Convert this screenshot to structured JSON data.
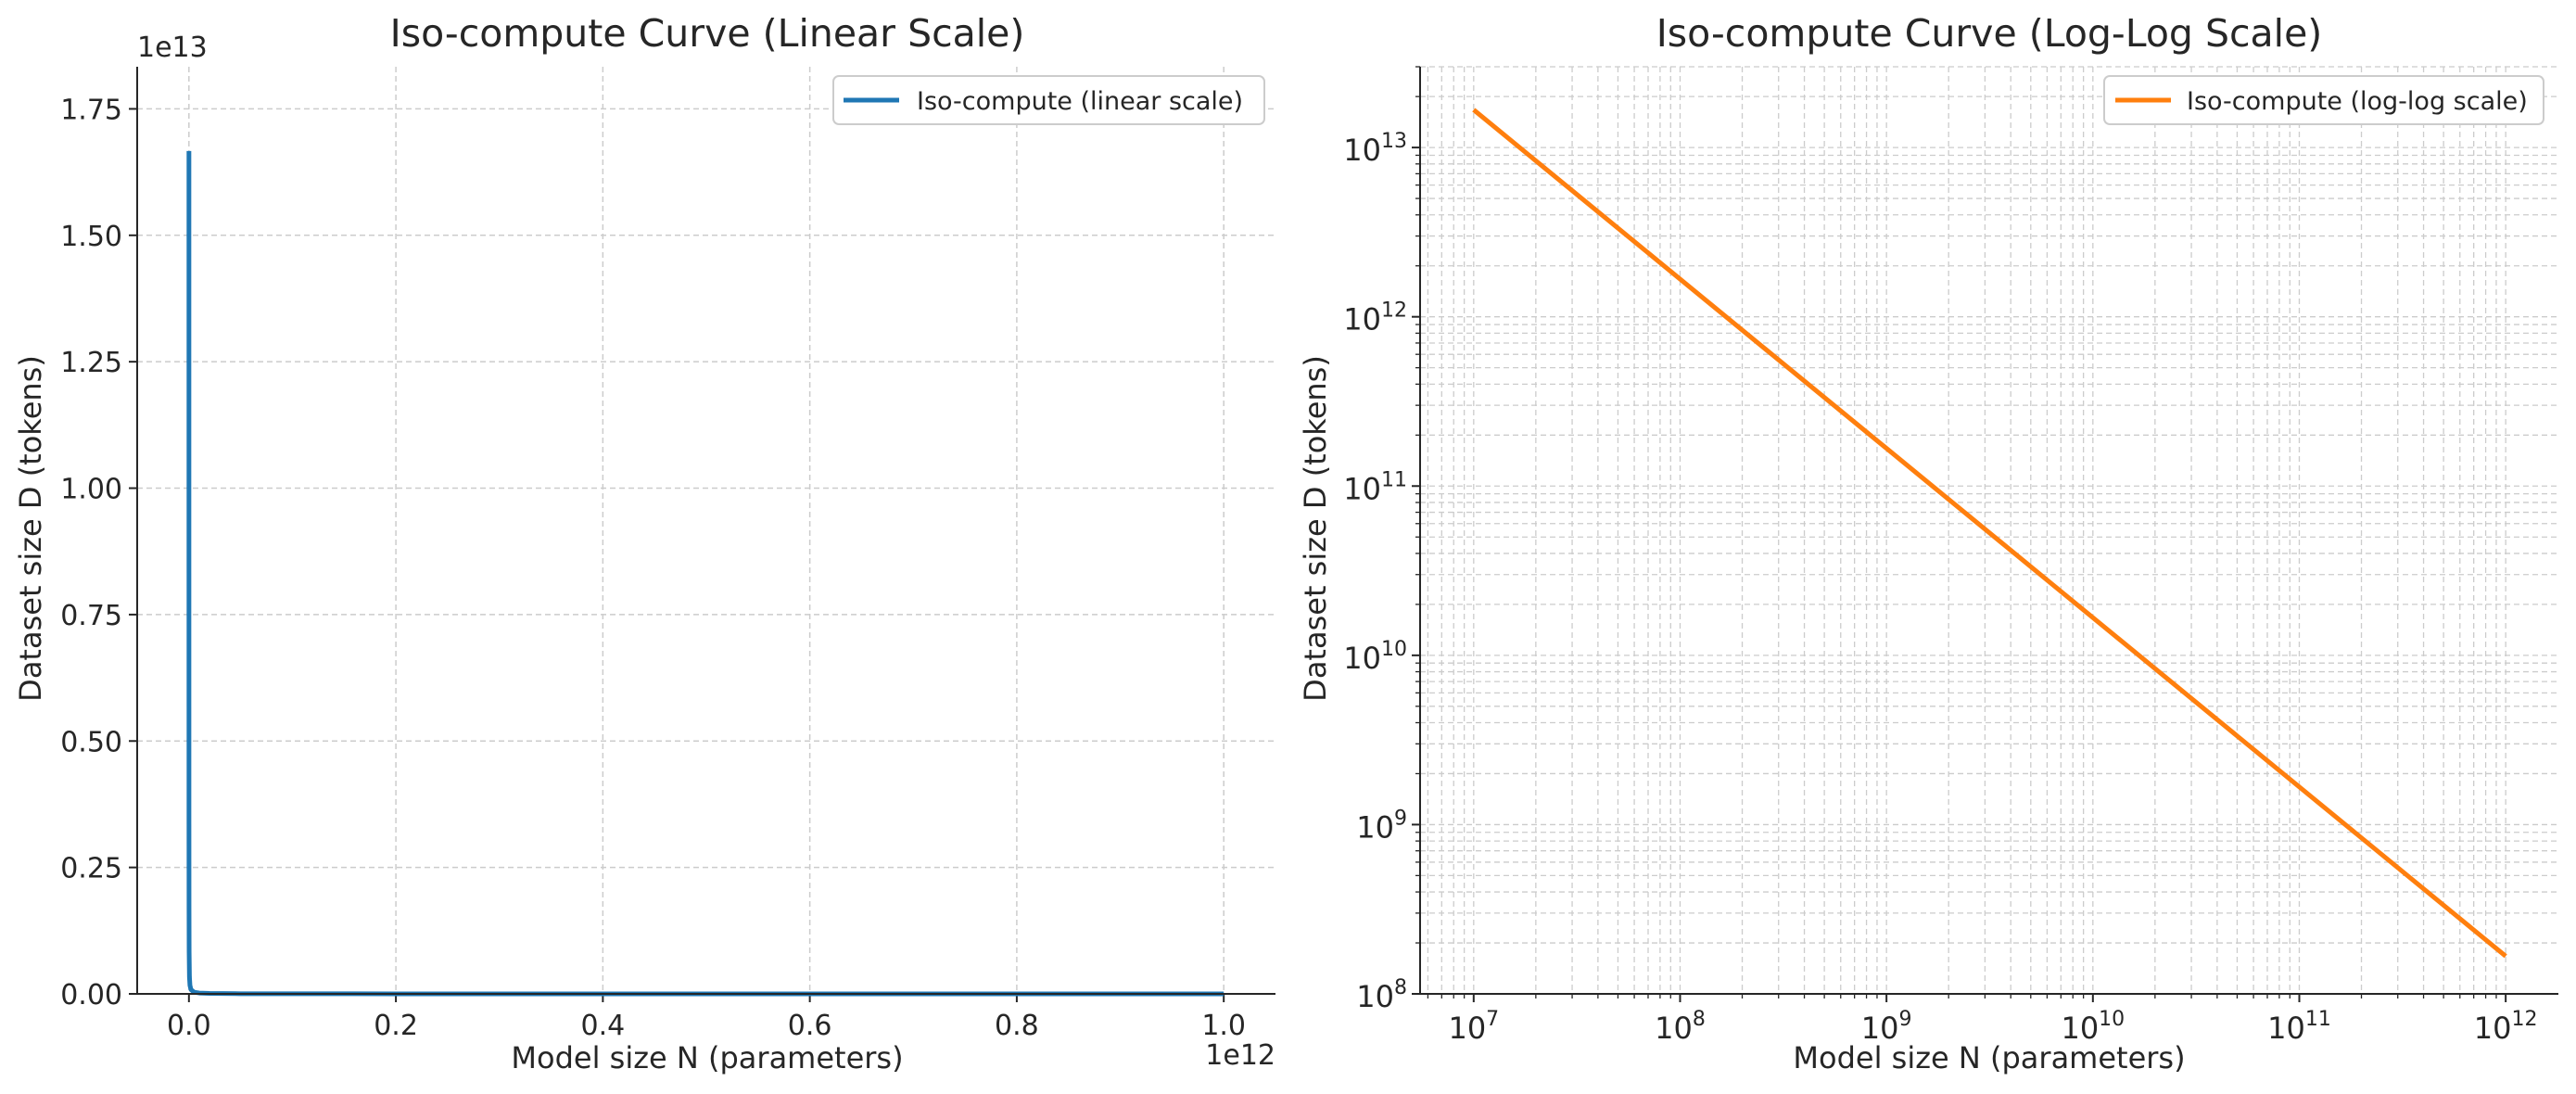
{
  "chart_data": [
    {
      "type": "line",
      "title": "Iso-compute Curve (Linear Scale)",
      "xlabel": "Model size N (parameters)",
      "ylabel": "Dataset size D (tokens)",
      "x_scale": "linear",
      "y_scale": "linear",
      "x_offset_label": "1e12",
      "y_offset_label": "1e13",
      "xlim": [
        -0.05,
        1.05
      ],
      "ylim": [
        0,
        1.8333
      ],
      "x_ticks": [
        0.0,
        0.2,
        0.4,
        0.6,
        0.8,
        1.0
      ],
      "x_tick_labels": [
        "0.0",
        "0.2",
        "0.4",
        "0.6",
        "0.8",
        "1.0"
      ],
      "y_ticks": [
        0.0,
        0.25,
        0.5,
        0.75,
        1.0,
        1.25,
        1.5,
        1.75
      ],
      "y_tick_labels": [
        "0.00",
        "0.25",
        "0.50",
        "0.75",
        "1.00",
        "1.25",
        "1.50",
        "1.75"
      ],
      "grid": true,
      "legend_position": "top-right",
      "series": [
        {
          "name": "Iso-compute (linear scale)",
          "color": "#1f77b4",
          "x": [
            1e-05,
            2e-05,
            5e-05,
            0.0001,
            0.0002,
            0.0005,
            0.001,
            0.002,
            0.005,
            0.01,
            0.02,
            0.05,
            0.1,
            0.2,
            0.4,
            0.6,
            0.8,
            1.0
          ],
          "y": [
            1.6667,
            0.83333,
            0.33333,
            0.16667,
            0.083333,
            0.033333,
            0.016667,
            0.0083333,
            0.0033333,
            0.0016667,
            0.00083333,
            0.00033333,
            0.00016667,
            8.3333e-05,
            4.1667e-05,
            2.7778e-05,
            2.0833e-05,
            1.6667e-05
          ]
        }
      ]
    },
    {
      "type": "line",
      "title": "Iso-compute Curve (Log-Log Scale)",
      "xlabel": "Model size N (parameters)",
      "ylabel": "Dataset size D (tokens)",
      "x_scale": "log",
      "y_scale": "log",
      "xlim": [
        5500000,
        1800000000000
      ],
      "ylim": [
        100000000,
        30000000000000
      ],
      "x_ticks": [
        10000000,
        100000000,
        1000000000,
        10000000000,
        100000000000,
        1000000000000
      ],
      "x_tick_bases": [
        "10",
        "10",
        "10",
        "10",
        "10",
        "10"
      ],
      "x_tick_exponents": [
        "7",
        "8",
        "9",
        "10",
        "11",
        "12"
      ],
      "y_ticks": [
        100000000,
        1000000000,
        10000000000,
        100000000000,
        1000000000000,
        10000000000000
      ],
      "y_tick_bases": [
        "10",
        "10",
        "10",
        "10",
        "10",
        "10"
      ],
      "y_tick_exponents": [
        "8",
        "9",
        "10",
        "11",
        "12",
        "13"
      ],
      "grid": true,
      "legend_position": "top-right",
      "series": [
        {
          "name": "Iso-compute (log-log scale)",
          "color": "#ff7f0e",
          "x": [
            10000000,
            1000000000000
          ],
          "y": [
            16700000000000,
            167000000
          ]
        }
      ]
    }
  ]
}
